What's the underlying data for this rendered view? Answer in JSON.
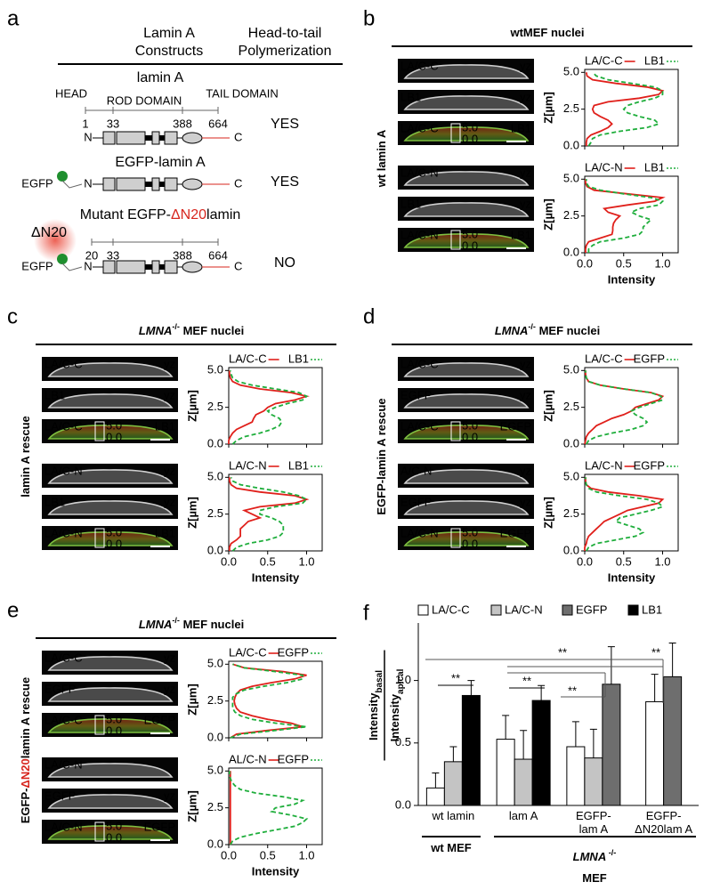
{
  "panel_a": {
    "label": "a",
    "headers": [
      [
        "Lamin A",
        "Constructs"
      ],
      [
        "Head-to-tail",
        "Polymerization"
      ]
    ],
    "n_label": "N",
    "c_label": "C",
    "tag": "EGFP",
    "constructs": [
      {
        "title": [
          {
            "text": "lamin A"
          }
        ],
        "domains": [
          "HEAD",
          "ROD DOMAIN",
          "TAIL DOMAIN"
        ],
        "positions": [
          1,
          33,
          388,
          664
        ],
        "result": "YES"
      },
      {
        "title": [
          {
            "text": "EGFP-lamin A"
          }
        ],
        "result": "YES"
      },
      {
        "title": [
          {
            "text": "Mutant EGFP-"
          },
          {
            "text": "ΔN20",
            "color": "#d7261e"
          },
          {
            "text": "lamin"
          }
        ],
        "deletion": "ΔN20",
        "positions": [
          20,
          33,
          388,
          664
        ],
        "result": "NO"
      }
    ]
  },
  "scale_box": [
    "5.0",
    "0.0"
  ],
  "profile_axes": {
    "z": [
      0,
      0.25,
      0.5,
      0.75,
      1,
      1.25,
      1.5,
      1.75,
      2,
      2.25,
      2.5,
      2.75,
      3,
      3.25,
      3.5,
      3.75,
      4,
      4.25,
      4.5,
      4.75,
      5
    ],
    "ylim": [
      0,
      5.2
    ],
    "yticks": [
      {
        "value": 0,
        "label": "0.0"
      },
      {
        "value": 2.5,
        "label": "2.5"
      },
      {
        "value": 5,
        "label": "5.0"
      }
    ],
    "xlim": [
      0,
      1.2
    ],
    "xticks": [
      {
        "value": 0,
        "label": "0.0"
      },
      {
        "value": 0.5,
        "label": "0.5"
      },
      {
        "value": 1,
        "label": "1.0"
      }
    ],
    "ylabel": "Z[µm]",
    "xlabel": "Intensity"
  },
  "panel_b": {
    "label": "b",
    "title": [
      {
        "text": "wtMEF nuclei"
      }
    ],
    "side": [
      {
        "text": "wt lamin A"
      }
    ],
    "groups": [
      {
        "images": [
          {
            "left": "LA/C-C",
            "right": "yz"
          },
          {
            "left": "LB1",
            "right": "yz"
          }
        ],
        "merge": {
          "left": "LA/C-C",
          "right": "LB1"
        },
        "profile": {
          "type": "line",
          "series": [
            {
              "name": "LA/C-C",
              "color": "#e0201b",
              "style": "solid",
              "values": [
                0.02,
                0.02,
                0.03,
                0.08,
                0.2,
                0.3,
                0.35,
                0.3,
                0.2,
                0.12,
                0.1,
                0.12,
                0.3,
                0.7,
                0.95,
                1.0,
                0.8,
                0.4,
                0.1,
                0.03,
                0.02
              ]
            },
            {
              "name": "LB1",
              "color": "#1fae3c",
              "style": "dashed",
              "values": [
                0.05,
                0.08,
                0.1,
                0.2,
                0.45,
                0.8,
                0.95,
                0.9,
                0.7,
                0.55,
                0.5,
                0.55,
                0.7,
                0.9,
                1.0,
                1.0,
                0.9,
                0.6,
                0.3,
                0.15,
                0.1
              ]
            }
          ]
        }
      },
      {
        "images": [
          {
            "left": "LA/C-N",
            "right": "yz"
          },
          {
            "left": "LB1",
            "right": "yz"
          }
        ],
        "merge": {
          "left": "LA/C-N",
          "right": "LB1"
        },
        "profile": {
          "type": "line",
          "series": [
            {
              "name": "LA/C-N",
              "color": "#e0201b",
              "style": "solid",
              "values": [
                0.01,
                0.01,
                0.02,
                0.05,
                0.2,
                0.35,
                0.36,
                0.36,
                0.37,
                0.4,
                0.45,
                0.3,
                0.25,
                0.55,
                0.9,
                1.0,
                0.55,
                0.12,
                0.03,
                0.01,
                0.01
              ]
            },
            {
              "name": "LB1",
              "color": "#1fae3c",
              "style": "dashed",
              "values": [
                0.05,
                0.05,
                0.1,
                0.2,
                0.5,
                0.7,
                0.75,
                0.75,
                0.8,
                0.85,
                0.7,
                0.6,
                0.7,
                0.95,
                1.0,
                0.85,
                0.5,
                0.2,
                0.05,
                0.02,
                0.02
              ]
            }
          ]
        }
      }
    ]
  },
  "panel_c": {
    "label": "c",
    "title": [
      {
        "text": "LMNA",
        "style": "italic"
      },
      {
        "text": "-/-",
        "style": "sup"
      },
      {
        "text": " MEF nuclei"
      }
    ],
    "side": [
      {
        "text": "lamin A rescue"
      }
    ],
    "groups": [
      {
        "images": [
          {
            "left": "LA/C-C",
            "right": "yz"
          },
          {
            "left": "LB1",
            "right": "yz"
          }
        ],
        "merge": {
          "left": "LA/C-C",
          "right": "LB1"
        },
        "profile": {
          "type": "line",
          "series": [
            {
              "name": "LA/C-C",
              "color": "#e0201b",
              "style": "solid",
              "values": [
                0,
                0,
                0.02,
                0.05,
                0.1,
                0.2,
                0.3,
                0.32,
                0.35,
                0.45,
                0.5,
                0.6,
                0.85,
                1.0,
                0.8,
                0.4,
                0.15,
                0.05,
                0.02,
                0.01,
                0.01
              ]
            },
            {
              "name": "LB1",
              "color": "#1fae3c",
              "style": "dashed",
              "values": [
                0.05,
                0.1,
                0.2,
                0.4,
                0.55,
                0.65,
                0.68,
                0.65,
                0.55,
                0.5,
                0.6,
                0.75,
                0.95,
                1.0,
                0.9,
                0.6,
                0.3,
                0.12,
                0.05,
                0.03,
                0.02
              ]
            }
          ]
        }
      },
      {
        "images": [
          {
            "left": "LA/C-N",
            "right": "yz"
          },
          {
            "left": "LB1",
            "right": "yz"
          }
        ],
        "merge": {
          "left": "LA/C-N",
          "right": "LB1"
        },
        "profile": {
          "type": "line",
          "series": [
            {
              "name": "LA/C-N",
              "color": "#e0201b",
              "style": "solid",
              "values": [
                0.01,
                0.01,
                0.03,
                0.1,
                0.15,
                0.15,
                0.15,
                0.2,
                0.25,
                0.4,
                0.3,
                0.2,
                0.4,
                0.85,
                1.0,
                0.85,
                0.4,
                0.1,
                0.03,
                0.01,
                0.01
              ]
            },
            {
              "name": "LB1",
              "color": "#1fae3c",
              "style": "dashed",
              "values": [
                0.05,
                0.1,
                0.25,
                0.5,
                0.65,
                0.7,
                0.7,
                0.7,
                0.65,
                0.55,
                0.4,
                0.4,
                0.6,
                0.95,
                1.0,
                0.9,
                0.7,
                0.4,
                0.15,
                0.05,
                0.03
              ]
            }
          ]
        }
      }
    ]
  },
  "panel_d": {
    "label": "d",
    "title": [
      {
        "text": "LMNA",
        "style": "italic"
      },
      {
        "text": "-/-",
        "style": "sup"
      },
      {
        "text": " MEF nuclei"
      }
    ],
    "side": [
      {
        "text": "EGFP-lamin A rescue"
      }
    ],
    "groups": [
      {
        "images": [
          {
            "left": "LA/C-C",
            "right": "yz"
          },
          {
            "left": "EGFP",
            "right": "yz"
          }
        ],
        "merge": {
          "left": "LA/C-C",
          "right": "EGFP"
        },
        "profile": {
          "type": "line",
          "series": [
            {
              "name": "LA/C-C",
              "color": "#e0201b",
              "style": "solid",
              "values": [
                0,
                0.01,
                0.02,
                0.05,
                0.1,
                0.15,
                0.25,
                0.35,
                0.5,
                0.6,
                0.65,
                0.8,
                0.95,
                1.0,
                0.85,
                0.5,
                0.2,
                0.05,
                0.02,
                0.01,
                0.01
              ]
            },
            {
              "name": "EGFP",
              "color": "#1fae3c",
              "style": "dashed",
              "values": [
                0.02,
                0.05,
                0.15,
                0.35,
                0.6,
                0.75,
                0.8,
                0.75,
                0.65,
                0.6,
                0.7,
                0.85,
                1.0,
                0.98,
                0.85,
                0.5,
                0.2,
                0.05,
                0.02,
                0.01,
                0.01
              ]
            }
          ]
        }
      },
      {
        "images": [
          {
            "left": "A/C-N",
            "right": "yz"
          },
          {
            "left": "EGFP",
            "right": "yz"
          }
        ],
        "merge": {
          "left": "LA/C-N",
          "right": "EGFP"
        },
        "profile": {
          "type": "line",
          "series": [
            {
              "name": "LA/C-N",
              "color": "#e0201b",
              "style": "solid",
              "values": [
                0,
                0,
                0.02,
                0.03,
                0.05,
                0.1,
                0.15,
                0.2,
                0.25,
                0.35,
                0.45,
                0.55,
                0.75,
                0.95,
                1.0,
                0.7,
                0.3,
                0.08,
                0.02,
                0.01,
                0.01
              ]
            },
            {
              "name": "EGFP",
              "color": "#1fae3c",
              "style": "dashed",
              "values": [
                0.02,
                0.05,
                0.15,
                0.4,
                0.65,
                0.75,
                0.7,
                0.55,
                0.4,
                0.45,
                0.65,
                0.85,
                1.0,
                0.95,
                0.8,
                0.45,
                0.15,
                0.05,
                0.02,
                0.01,
                0.01
              ]
            }
          ]
        }
      }
    ]
  },
  "panel_e": {
    "label": "e",
    "title": [
      {
        "text": "LMNA",
        "style": "italic"
      },
      {
        "text": "-/-",
        "style": "sup"
      },
      {
        "text": " MEF nuclei"
      }
    ],
    "side": [
      {
        "text": "EGFP-"
      },
      {
        "text": "ΔN20",
        "color": "#d7261e"
      },
      {
        "text": "lamin A rescue"
      }
    ],
    "groups": [
      {
        "images": [
          {
            "left": "LA/C-C",
            "right": "yz"
          },
          {
            "left": "EGFP",
            "right": "yz"
          }
        ],
        "merge": {
          "left": "LA/C-C",
          "right": "EGFP"
        },
        "profile": {
          "type": "line",
          "series": [
            {
              "name": "LA/C-C",
              "color": "#e0201b",
              "style": "solid",
              "values": [
                0.02,
                0.1,
                0.5,
                0.95,
                0.8,
                0.5,
                0.3,
                0.15,
                0.1,
                0.08,
                0.07,
                0.08,
                0.1,
                0.15,
                0.3,
                0.55,
                0.85,
                1.0,
                0.7,
                0.2,
                0.05
              ]
            },
            {
              "name": "EGFP",
              "color": "#1fae3c",
              "style": "dashed",
              "values": [
                0.02,
                0.15,
                0.6,
                1.0,
                0.6,
                0.3,
                0.15,
                0.08,
                0.05,
                0.05,
                0.05,
                0.05,
                0.1,
                0.2,
                0.45,
                0.75,
                0.95,
                0.95,
                0.6,
                0.2,
                0.05
              ]
            }
          ]
        }
      },
      {
        "images": [
          {
            "left": "LA/C-N"
          },
          {
            "left": "EGFP",
            "right": "yz"
          }
        ],
        "merge": {
          "left": "LA/C-N",
          "right": "EGFP"
        },
        "profile": {
          "type": "line",
          "series": [
            {
              "name": "AL/C-N",
              "color": "#e0201b",
              "style": "solid",
              "values": [
                0.02,
                0.02,
                0.02,
                0.02,
                0.02,
                0.02,
                0.02,
                0.02,
                0.02,
                0.02,
                0.02,
                0.02,
                0.02,
                0.02,
                0.02,
                0.02,
                0.02,
                0.02,
                0.02,
                0.02,
                0.02
              ]
            },
            {
              "name": "EGFP",
              "color": "#1fae3c",
              "style": "dashed",
              "values": [
                0.02,
                0.05,
                0.15,
                0.35,
                0.6,
                0.85,
                0.95,
                1.0,
                0.8,
                0.55,
                0.6,
                0.85,
                0.95,
                0.7,
                0.35,
                0.15,
                0.08,
                0.04,
                0.02,
                0.01,
                0.01
              ]
            }
          ]
        }
      }
    ]
  },
  "panel_f": {
    "label": "f",
    "type": "bar",
    "categories": [
      "wt lamin",
      "lam A",
      "EGFP-lam A",
      "EGFP-ΔN20lam A"
    ],
    "series": [
      {
        "name": "LA/C-C",
        "color": "#ffffff",
        "values": [
          0.14,
          0.53,
          0.47,
          0.83
        ],
        "errors": [
          0.12,
          0.19,
          0.2,
          0.22
        ]
      },
      {
        "name": "LA/C-N",
        "color": "#c4c4c4",
        "values": [
          0.35,
          0.37,
          0.38,
          null
        ],
        "errors": [
          0.12,
          0.23,
          0.23,
          null
        ]
      },
      {
        "name": "EGFP",
        "color": "#6e6e6e",
        "values": [
          null,
          null,
          0.97,
          1.03
        ],
        "errors": [
          null,
          null,
          0.3,
          0.27
        ]
      },
      {
        "name": "LB1",
        "color": "#000000",
        "values": [
          0.88,
          0.84,
          null,
          null
        ],
        "errors": [
          0.12,
          0.12,
          null,
          null
        ]
      }
    ],
    "ylim": [
      0,
      1.46
    ],
    "yticks": [
      {
        "value": 0,
        "label": "0.0"
      },
      {
        "value": 0.5,
        "label": "0.5"
      },
      {
        "value": 1,
        "label": "1.0"
      }
    ],
    "ylabel": {
      "numerator": "Intensity",
      "numerator_sub": "basal",
      "denominator": "Intensity",
      "denominator_sub": "apical"
    },
    "significance": [
      "**",
      "**",
      "**",
      "**",
      "**"
    ],
    "groups": [
      [
        [
          {
            "text": "wt MEF"
          }
        ]
      ],
      [
        [
          {
            "text": "LMNA",
            "style": "italic"
          },
          {
            "text": " -/-",
            "style": "sup"
          }
        ],
        [
          {
            "text": "MEF"
          }
        ]
      ]
    ]
  }
}
